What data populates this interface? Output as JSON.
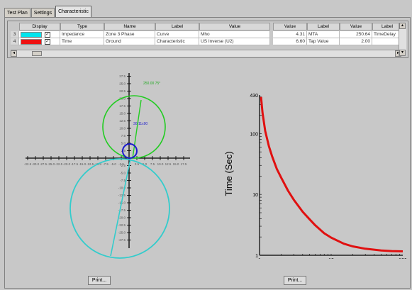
{
  "tabs": [
    {
      "label": "Test Plan",
      "active": false
    },
    {
      "label": "Settings",
      "active": false
    },
    {
      "label": "Characteristic",
      "active": true
    }
  ],
  "grid": {
    "headers": [
      "Display",
      "Type",
      "Name",
      "Label",
      "Value",
      "Value",
      "Label",
      "Value",
      "Label"
    ],
    "rows": [
      {
        "num": "3",
        "color": "#00e5ee",
        "checked": true,
        "type": "Impedance",
        "name": "Zone 3 Phase",
        "label": "Curve",
        "value": "Mho",
        "value2": "4.31",
        "label2": "MTA",
        "value3": "250.64",
        "label3": "TimeDelay"
      },
      {
        "num": "4",
        "color": "#ee1111",
        "checked": true,
        "type": "Time",
        "name": "Ground",
        "label": "Characteristic",
        "value": "US Inverse (U2)",
        "value2": "6.60",
        "label2": "Tap Value",
        "value3": "2.00",
        "label3": ""
      }
    ]
  },
  "polar_chart": {
    "green_label": "250.00 75°",
    "blue_label": "30 11x90"
  },
  "chart_data": {
    "type": "line",
    "title": "",
    "xlabel": "",
    "ylabel": "Time (Sec)",
    "xscale": "log",
    "yscale": "log",
    "xlim": [
      1,
      100
    ],
    "ylim": [
      1,
      430
    ],
    "x_ticks": [
      "1",
      "10",
      "100"
    ],
    "y_ticks": [
      "1",
      "10",
      "100",
      "430"
    ],
    "series": [
      {
        "color": "#e01010",
        "x": [
          1.05,
          1.1,
          1.2,
          1.35,
          1.5,
          1.75,
          2,
          2.5,
          3,
          4,
          5,
          6,
          8,
          10,
          15,
          20,
          30,
          50,
          70,
          100
        ],
        "y": [
          400,
          220,
          110,
          62,
          42,
          26,
          19,
          11.5,
          8.2,
          5.2,
          3.9,
          3.1,
          2.3,
          1.95,
          1.55,
          1.4,
          1.28,
          1.2,
          1.17,
          1.16
        ]
      }
    ],
    "grid": false
  },
  "buttons": {
    "print_left": "Print...",
    "print_right": "Print..."
  }
}
